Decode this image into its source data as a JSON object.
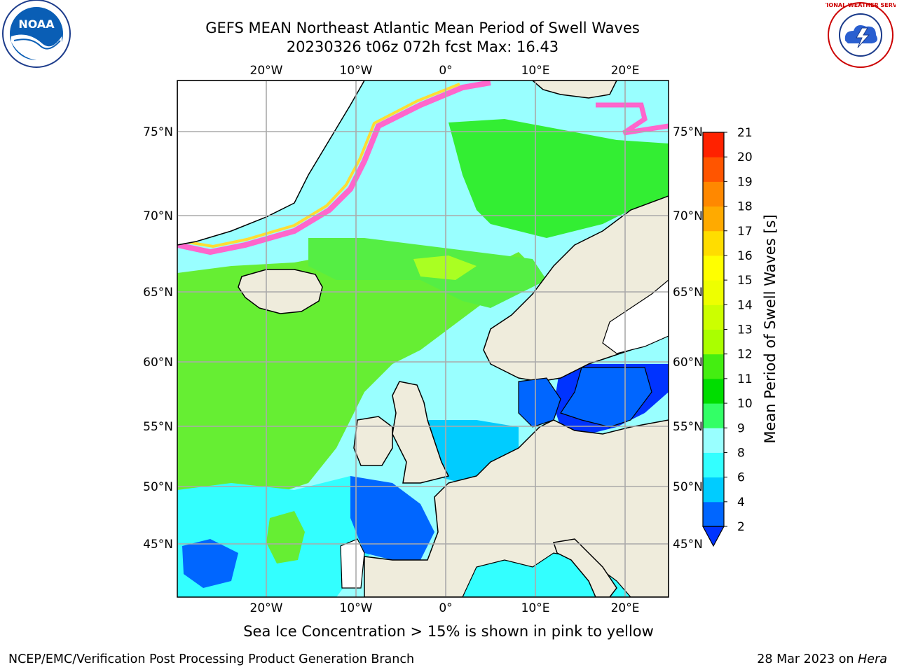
{
  "title": {
    "line1": "GEFS MEAN Northeast Atlantic Mean Period of Swell Waves",
    "line2": "20230326 t06z 072h fcst   Max: 16.43"
  },
  "map": {
    "lon_labels_top": [
      "20°W",
      "10°W",
      "0°",
      "10°E",
      "20°E"
    ],
    "lon_labels_bottom": [
      "20°W",
      "10°W",
      "0°",
      "10°E",
      "20°E"
    ],
    "lat_labels_left": [
      "75°N",
      "70°N",
      "65°N",
      "60°N",
      "55°N",
      "50°N",
      "45°N"
    ],
    "lat_labels_right": [
      "75°N",
      "70°N",
      "65°N",
      "60°N",
      "55°N",
      "50°N",
      "45°N"
    ]
  },
  "colorbar": {
    "label": "Mean Period of Swell Waves [s]",
    "ticks": [
      "2",
      "4",
      "6",
      "8",
      "9",
      "10",
      "11",
      "12",
      "13",
      "14",
      "15",
      "16",
      "17",
      "18",
      "19",
      "20",
      "21"
    ],
    "colors": [
      "#0066ff",
      "#00ccff",
      "#33ffff",
      "#99ffff",
      "#33ff66",
      "#00dd00",
      "#44ee11",
      "#aaff00",
      "#ccff00",
      "#eeff00",
      "#ffff00",
      "#ffdd00",
      "#ffaa00",
      "#ff8800",
      "#ff5500",
      "#ff2200"
    ],
    "extend_color": "#0033ff"
  },
  "caption": "Sea Ice Concentration > 15% is shown in pink to yellow",
  "footer": {
    "left": "NCEP/EMC/Verification Post Processing Product Generation Branch",
    "right_date": "28 Mar 2023 on ",
    "right_machine": "Hera"
  },
  "logos": {
    "noaa_text": "NOAA",
    "nws_text": "NATIONAL WEATHER SERVICE"
  }
}
